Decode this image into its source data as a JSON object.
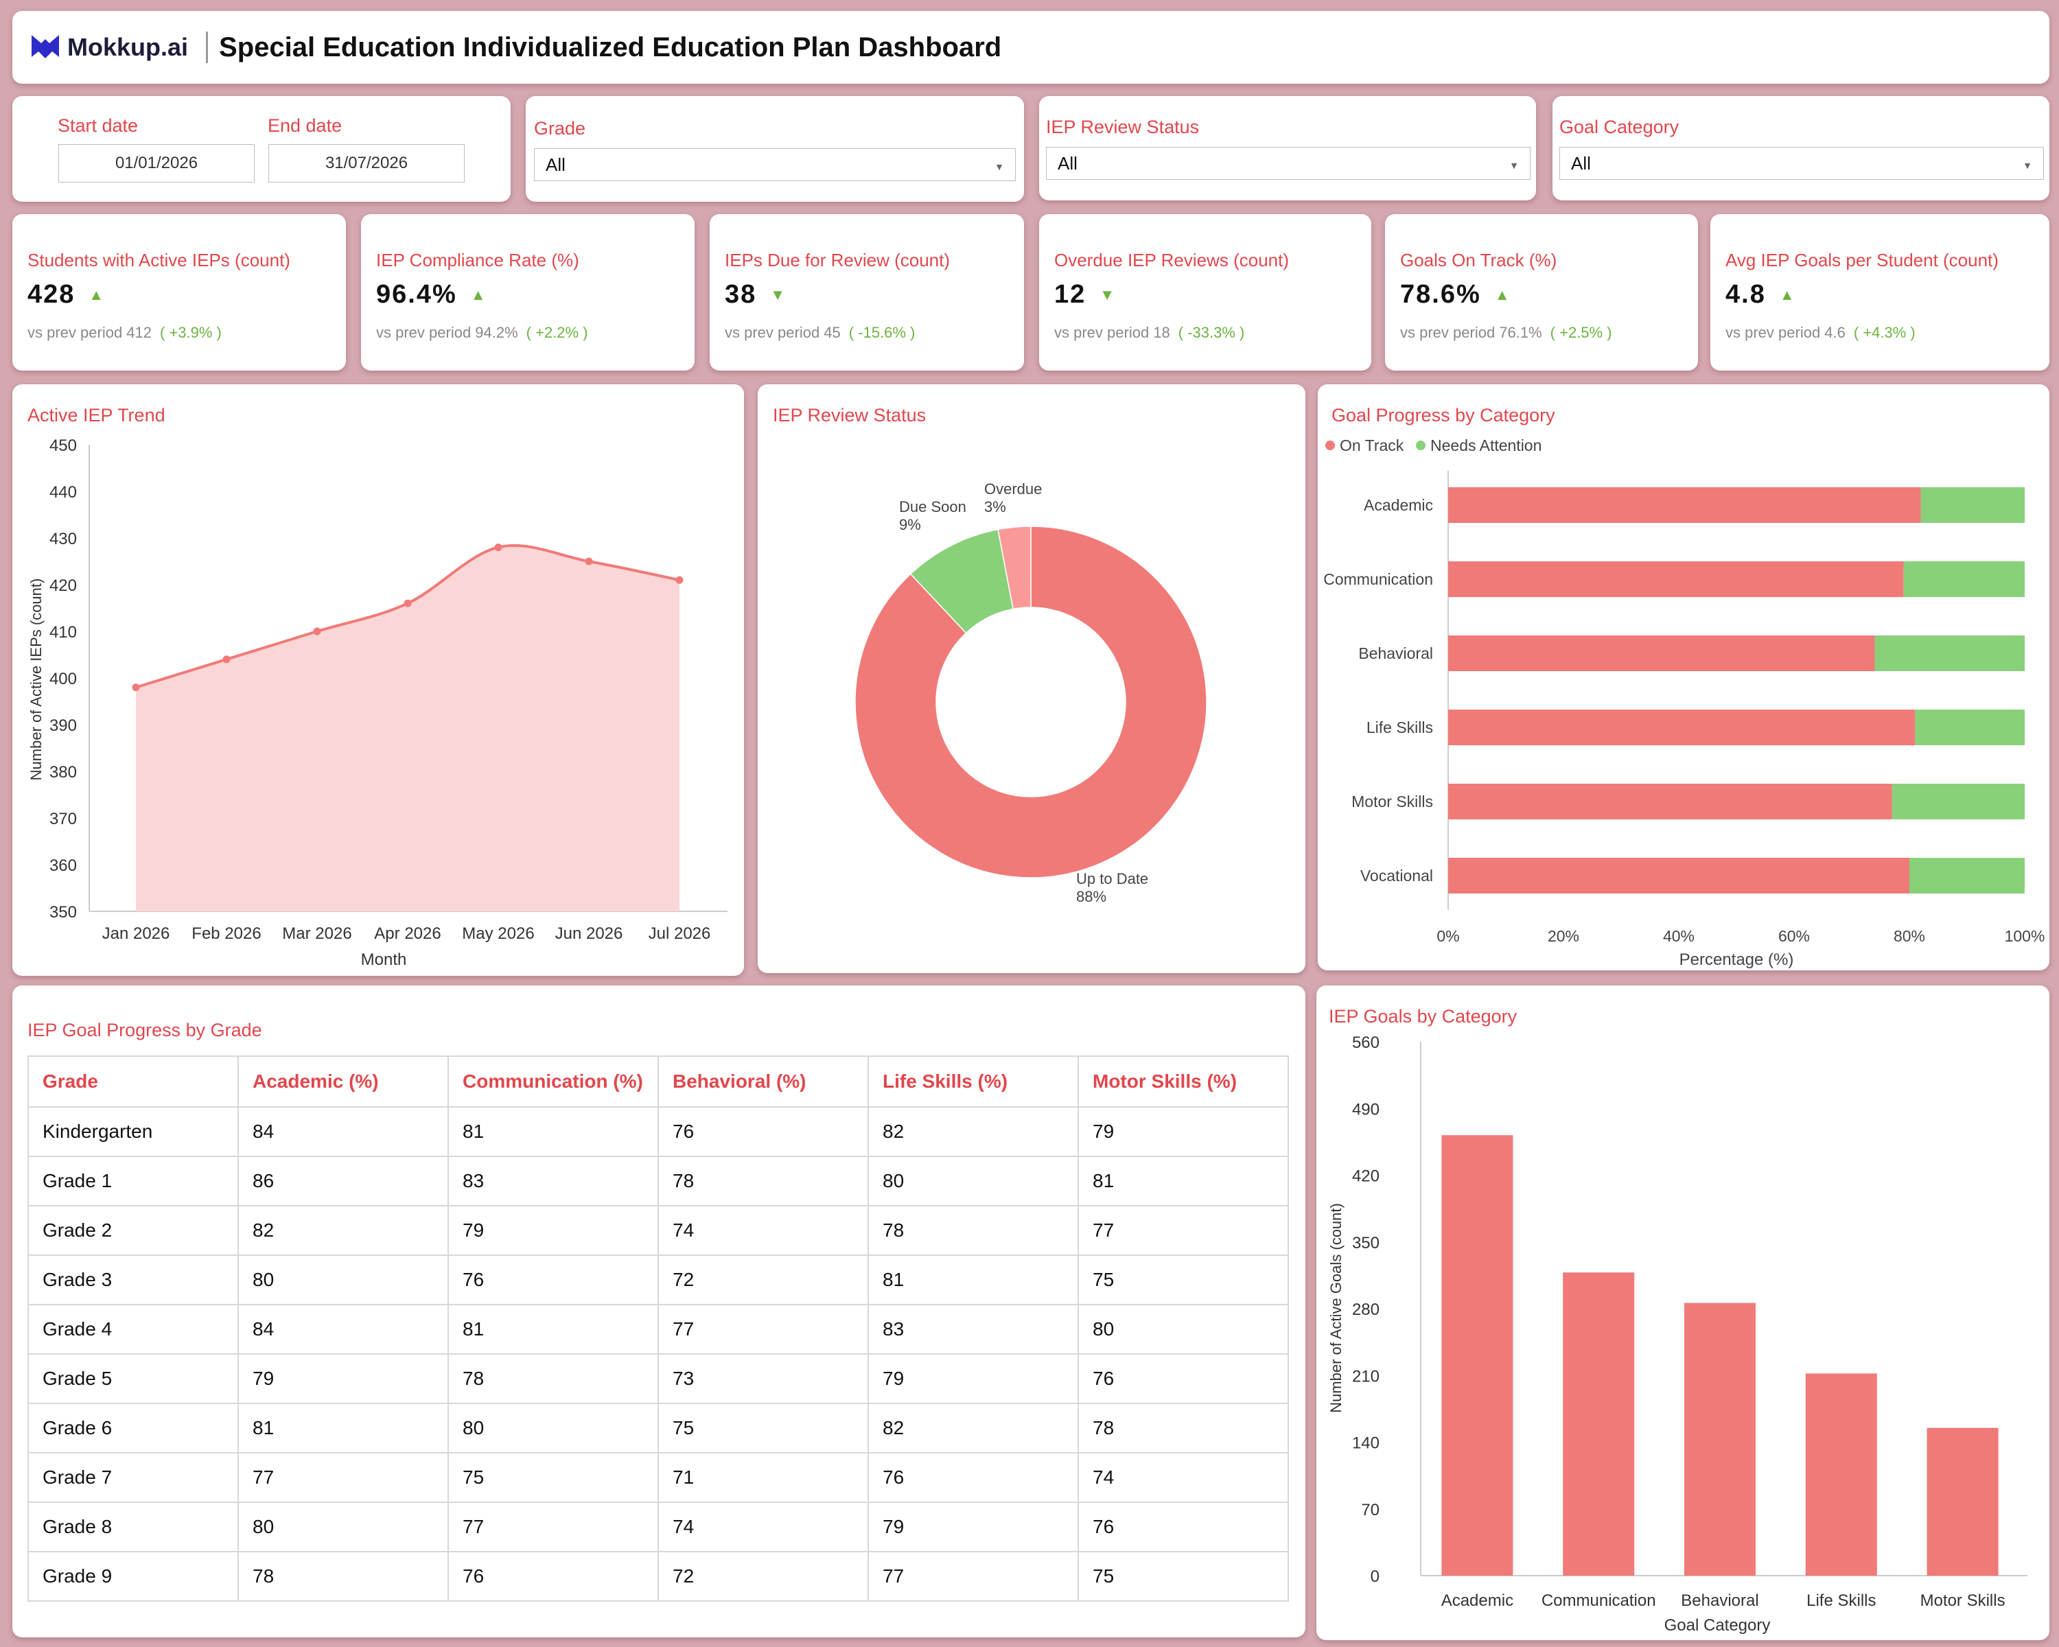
{
  "header": {
    "logo_text": "Mokkup.ai",
    "title": "Special Education Individualized Education Plan Dashboard",
    "accent": "#2e2cc9"
  },
  "filters": {
    "start_label": "Start date",
    "start_value": "01/01/2026",
    "end_label": "End date",
    "end_value": "31/07/2026",
    "grade_label": "Grade",
    "grade_value": "All",
    "review_label": "IEP Review Status",
    "review_value": "All",
    "goal_label": "Goal Category",
    "goal_value": "All"
  },
  "kpis": [
    {
      "title": "Students with Active IEPs (count)",
      "value": "428",
      "trend": "up",
      "prev": "vs prev period 412",
      "change": "( +3.9% )"
    },
    {
      "title": "IEP Compliance Rate (%)",
      "value": "96.4%",
      "trend": "up",
      "prev": "vs prev period 94.2%",
      "change": "( +2.2% )"
    },
    {
      "title": "IEPs Due for Review (count)",
      "value": "38",
      "trend": "down",
      "prev": "vs prev period 45",
      "change": "( -15.6% )"
    },
    {
      "title": "Overdue IEP Reviews (count)",
      "value": "12",
      "trend": "down",
      "prev": "vs prev period 18",
      "change": "( -33.3% )"
    },
    {
      "title": "Goals On Track (%)",
      "value": "78.6%",
      "trend": "up",
      "prev": "vs prev period 76.1%",
      "change": "( +2.5% )"
    },
    {
      "title": "Avg IEP Goals per Student (count)",
      "value": "4.8",
      "trend": "up",
      "prev": "vs prev period 4.6",
      "change": "( +4.3% )"
    }
  ],
  "colors": {
    "primary": "#f07a78",
    "secondary": "#88d17a",
    "overdue": "#f99a99",
    "area": "#fad6d6",
    "up": "#6db33f"
  },
  "chart_data": [
    {
      "id": "trend",
      "type": "area",
      "title": "Active IEP Trend",
      "xlabel": "Month",
      "ylabel": "Number of Active IEPs (count)",
      "categories": [
        "Jan 2026",
        "Feb 2026",
        "Mar 2026",
        "Apr 2026",
        "May 2026",
        "Jun 2026",
        "Jul 2026"
      ],
      "values": [
        398,
        404,
        410,
        416,
        428,
        425,
        421
      ],
      "ylim": [
        350,
        450
      ],
      "yticks": [
        350,
        360,
        370,
        380,
        390,
        400,
        410,
        420,
        430,
        440,
        450
      ]
    },
    {
      "id": "review",
      "type": "pie",
      "title": "IEP Review Status",
      "slices": [
        {
          "label": "Up to Date",
          "pct": "88%",
          "value": 88
        },
        {
          "label": "Due Soon",
          "pct": "9%",
          "value": 9
        },
        {
          "label": "Overdue",
          "pct": "3%",
          "value": 3
        }
      ]
    },
    {
      "id": "progress",
      "type": "bar",
      "title": "Goal Progress by Category",
      "legend": [
        "On Track",
        "Needs Attention"
      ],
      "legend_position": "top-left",
      "categories": [
        "Academic",
        "Communication",
        "Behavioral",
        "Life Skills",
        "Motor Skills",
        "Vocational"
      ],
      "series": [
        {
          "name": "On Track",
          "values": [
            82,
            79,
            74,
            81,
            77,
            80
          ]
        },
        {
          "name": "Needs Attention",
          "values": [
            18,
            21,
            26,
            19,
            23,
            20
          ]
        }
      ],
      "xticks": [
        "0%",
        "20%",
        "40%",
        "60%",
        "80%",
        "100%"
      ],
      "xlabel": "Percentage (%)",
      "xlim": [
        0,
        100
      ]
    },
    {
      "id": "goals",
      "type": "bar",
      "title": "IEP Goals by Category",
      "categories": [
        "Academic",
        "Communication",
        "Behavioral",
        "Life Skills",
        "Motor Skills"
      ],
      "values": [
        462,
        318,
        286,
        212,
        155
      ],
      "xlabel": "Goal Category",
      "ylabel": "Number of Active Goals (count)",
      "ylim": [
        0,
        560
      ],
      "yticks": [
        0,
        70,
        140,
        210,
        280,
        350,
        420,
        490,
        560
      ]
    }
  ],
  "table": {
    "title": "IEP Goal Progress by Grade",
    "headers": [
      "Grade",
      "Academic (%)",
      "Communication (%)",
      "Behavioral (%)",
      "Life Skills (%)",
      "Motor Skills (%)"
    ],
    "rows": [
      [
        "Kindergarten",
        "84",
        "81",
        "76",
        "82",
        "79"
      ],
      [
        "Grade 1",
        "86",
        "83",
        "78",
        "80",
        "81"
      ],
      [
        "Grade 2",
        "82",
        "79",
        "74",
        "78",
        "77"
      ],
      [
        "Grade 3",
        "80",
        "76",
        "72",
        "81",
        "75"
      ],
      [
        "Grade 4",
        "84",
        "81",
        "77",
        "83",
        "80"
      ],
      [
        "Grade 5",
        "79",
        "78",
        "73",
        "79",
        "76"
      ],
      [
        "Grade 6",
        "81",
        "80",
        "75",
        "82",
        "78"
      ],
      [
        "Grade 7",
        "77",
        "75",
        "71",
        "76",
        "74"
      ],
      [
        "Grade 8",
        "80",
        "77",
        "74",
        "79",
        "76"
      ],
      [
        "Grade 9",
        "78",
        "76",
        "72",
        "77",
        "75"
      ]
    ]
  }
}
